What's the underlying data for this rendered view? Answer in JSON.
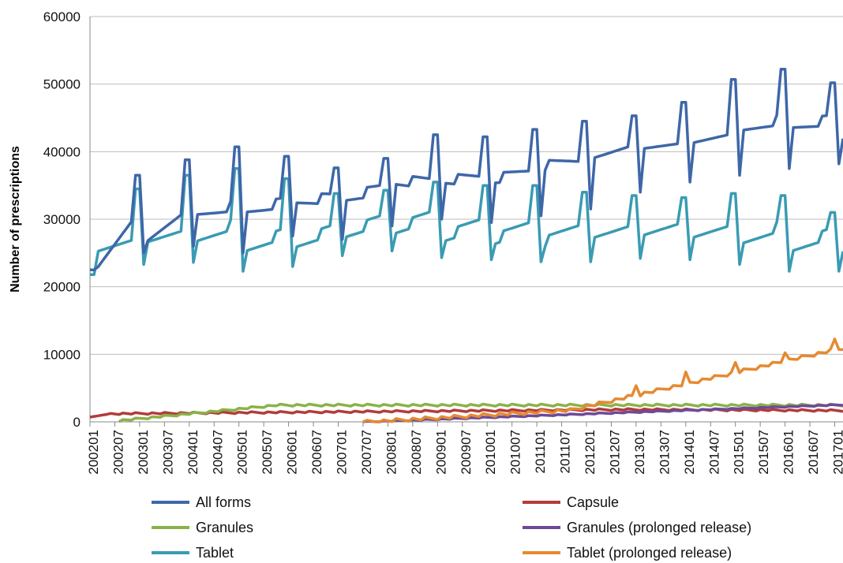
{
  "chart_data": {
    "type": "line",
    "title": "",
    "xlabel": "",
    "ylabel": "Number of prescriptions",
    "ylim": [
      0,
      60000
    ],
    "yticks": [
      0,
      10000,
      20000,
      30000,
      40000,
      50000,
      60000
    ],
    "xticks": [
      "200201",
      "200207",
      "200301",
      "200307",
      "200401",
      "200407",
      "200501",
      "200507",
      "200601",
      "200607",
      "200701",
      "200707",
      "200801",
      "200807",
      "200901",
      "200907",
      "201001",
      "201007",
      "201101",
      "201107",
      "201201",
      "201207",
      "201301",
      "201307",
      "201401",
      "201407",
      "201501",
      "201507",
      "201601",
      "201607",
      "201701"
    ],
    "x_start": "200201",
    "x_end": "201703",
    "grid": "horizontal",
    "legend_position": "bottom",
    "series": [
      {
        "name": "All forms",
        "color": "#3E67A8",
        "x": "month",
        "jan_values": [
          36500,
          38800,
          40700,
          39300,
          37600,
          39000,
          42500,
          42200,
          43300,
          44500,
          45300,
          47300,
          50700,
          52200,
          50200
        ],
        "dec_values": [
          36500,
          38800,
          40700,
          39300,
          37600,
          39000,
          42500,
          42200,
          43300,
          44500,
          45300,
          47300,
          50700,
          52200,
          50200
        ],
        "feb_values": [
          22500,
          25000,
          26000,
          25000,
          27500,
          27000,
          29000,
          30000,
          29500,
          30500,
          31500,
          34000,
          35500,
          36500,
          37500,
          38200
        ],
        "range_low": [
          22500,
          26500,
          30500,
          31000,
          32500,
          33000,
          35500,
          35800,
          36000,
          38000,
          38500,
          40000,
          41000,
          43000,
          43500,
          42000
        ],
        "range_high": [
          31200,
          32000,
          32200,
          32800,
          33500,
          35000,
          36000,
          36500,
          37500,
          39000,
          41500,
          42000,
          43500,
          45000,
          45000,
          45500
        ]
      },
      {
        "name": "Capsule",
        "color": "#B23C3A"
      },
      {
        "name": "Granules",
        "color": "#8AB24A"
      },
      {
        "name": "Granules (prolonged release)",
        "color": "#6E4A99"
      },
      {
        "name": "Tablet",
        "color": "#3A9BB3",
        "jan_values": [
          34500,
          36500,
          37500,
          36000,
          33800,
          34300,
          35500,
          35000,
          35000,
          34000,
          33500,
          33200,
          33800,
          33500,
          31000
        ],
        "feb_values": [
          21800,
          23300,
          23600,
          22300,
          23000,
          24600,
          25300,
          24300,
          24000,
          23700,
          23700,
          24200,
          24000,
          23300,
          22300,
          22300
        ]
      },
      {
        "name": "Tablet (prolonged release)",
        "color": "#E58A31"
      }
    ]
  },
  "legend": {
    "items": [
      {
        "label": "All forms",
        "color": "#3E67A8"
      },
      {
        "label": "Capsule",
        "color": "#B23C3A"
      },
      {
        "label": "Granules",
        "color": "#8AB24A"
      },
      {
        "label": "Granules (prolonged release)",
        "color": "#6E4A99"
      },
      {
        "label": "Tablet",
        "color": "#3A9BB3"
      },
      {
        "label": "Tablet (prolonged release)",
        "color": "#E58A31"
      }
    ]
  }
}
